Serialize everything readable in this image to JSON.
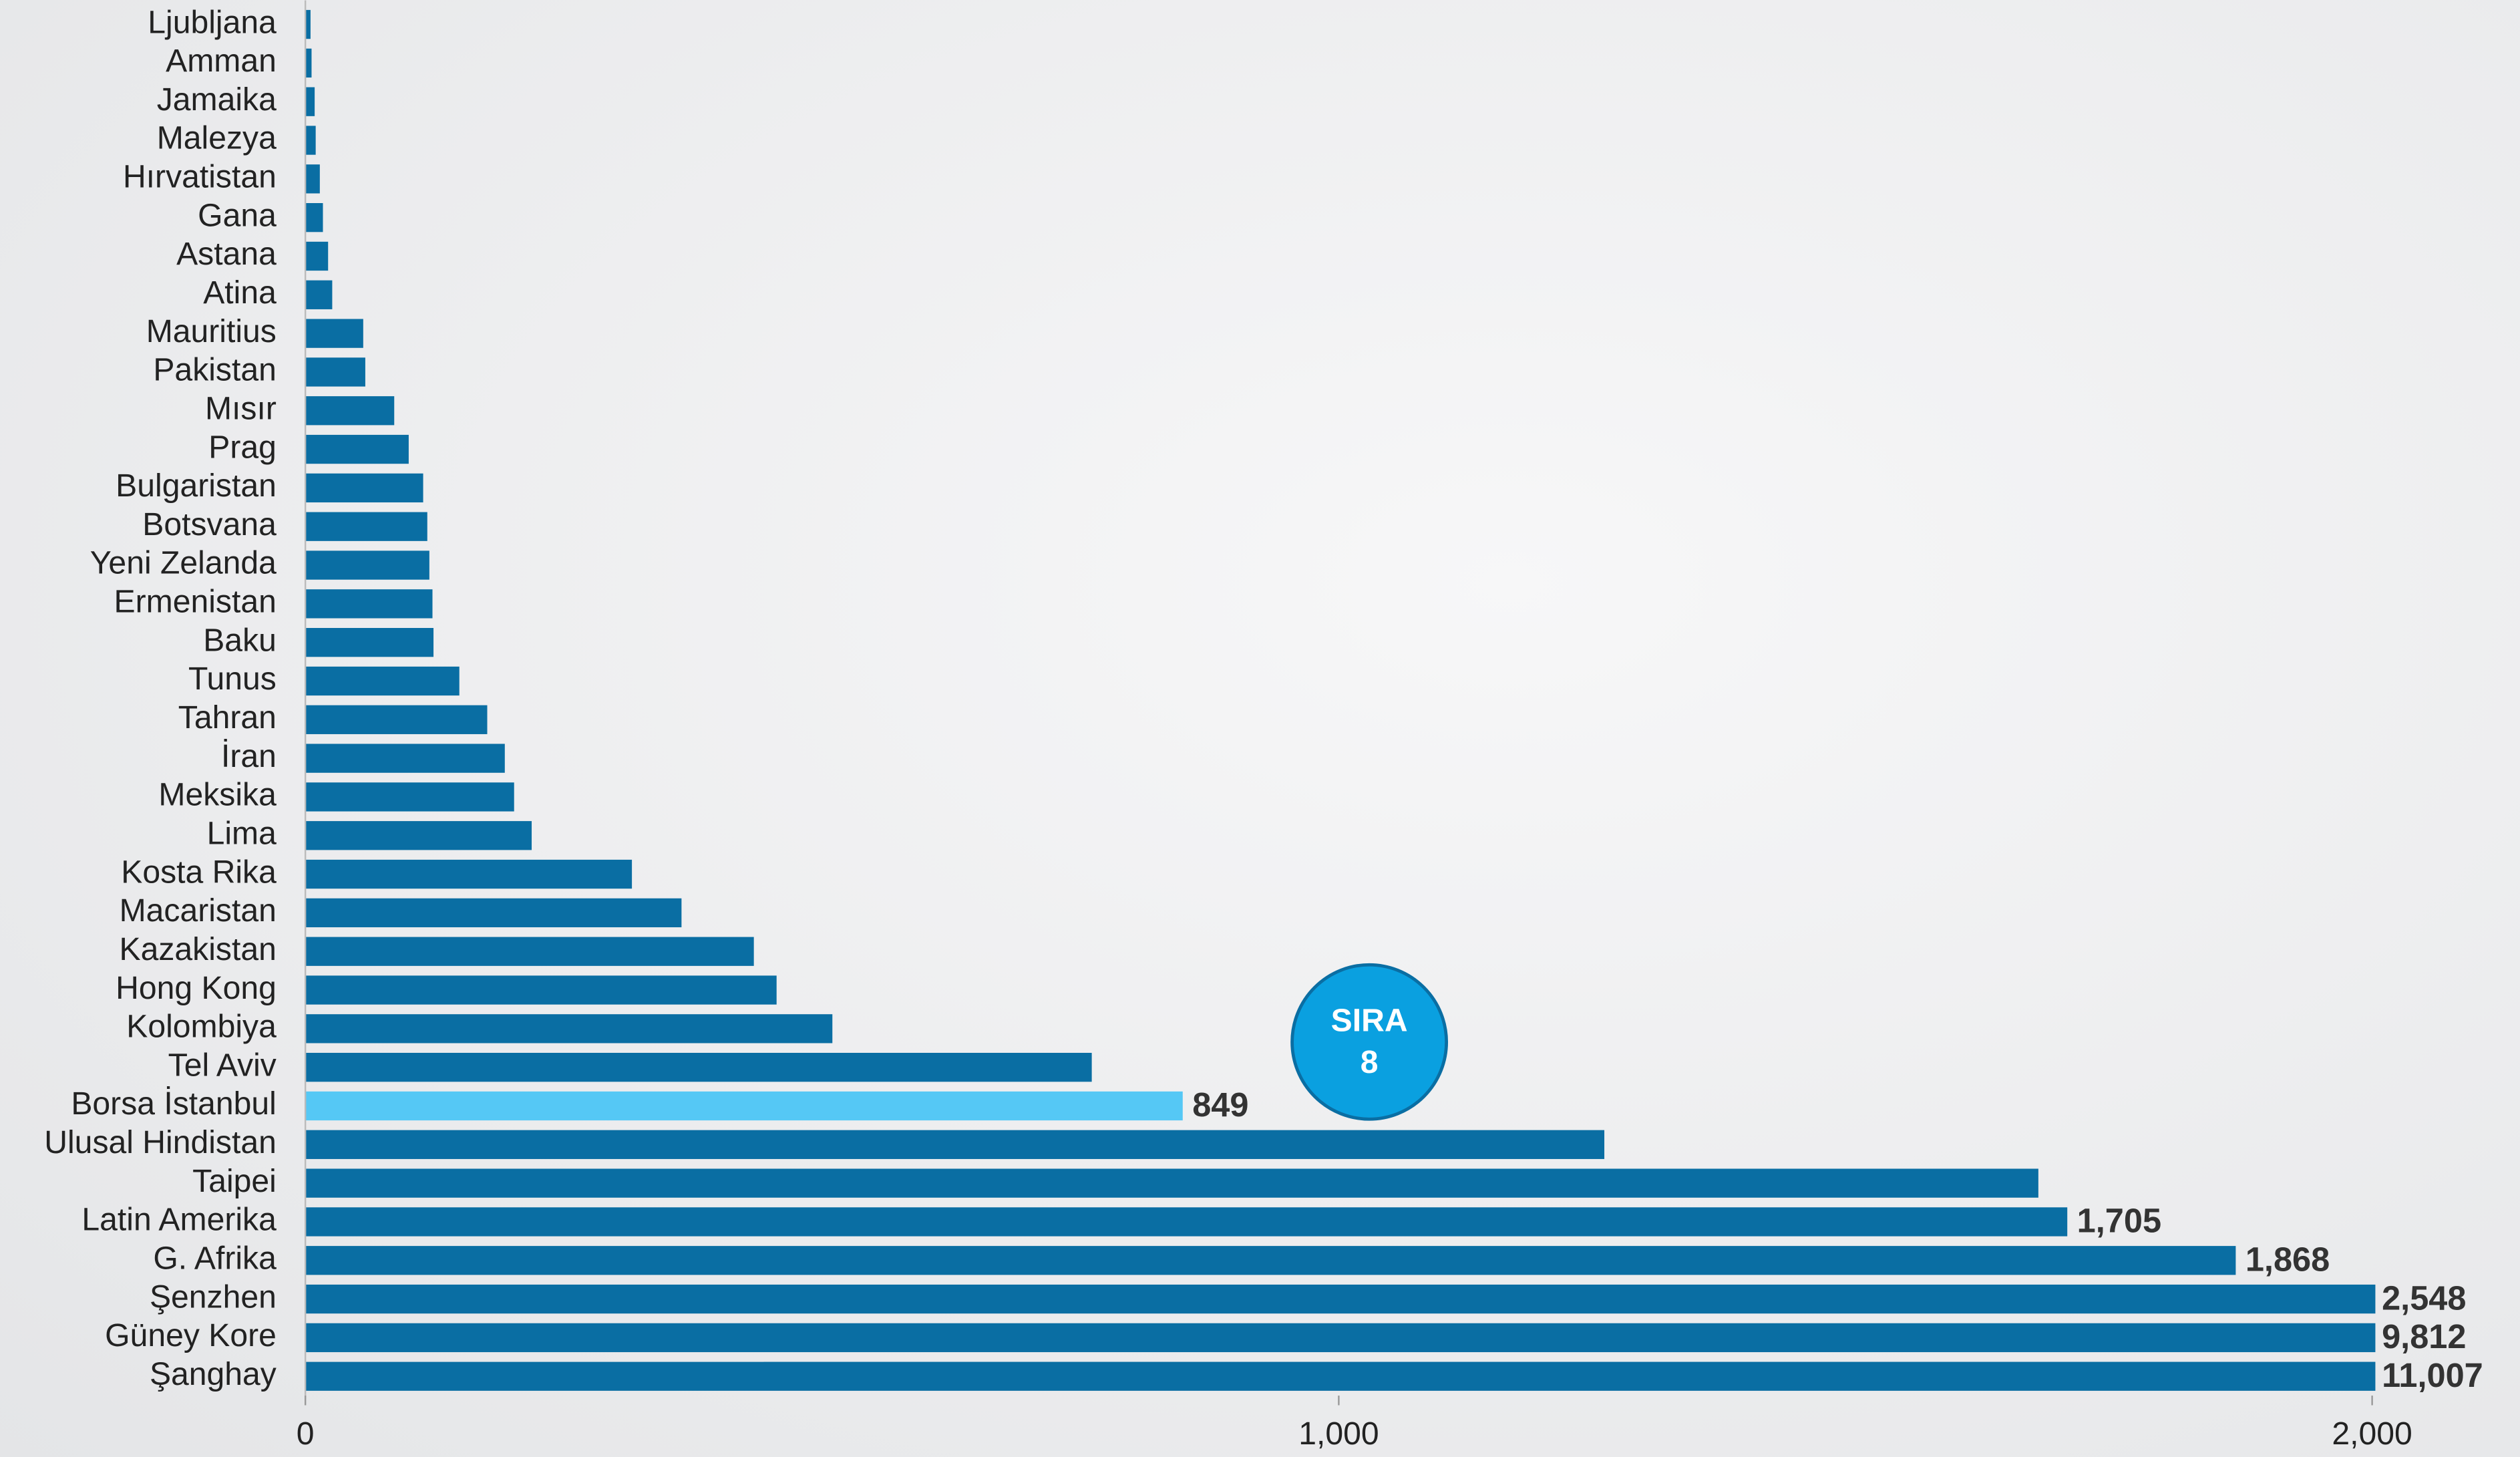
{
  "chart_data": {
    "type": "hbar",
    "categories": [
      "Ljubljana",
      "Amman",
      "Jamaika",
      "Malezya",
      "Hırvatistan",
      "Gana",
      "Astana",
      "Atina",
      "Mauritius",
      "Pakistan",
      "Mısır",
      "Prag",
      "Bulgaristan",
      "Botsvana",
      "Yeni Zelanda",
      "Ermenistan",
      "Baku",
      "Tunus",
      "Tahran",
      "İran",
      "Meksika",
      "Lima",
      "Kosta Rika",
      "Macaristan",
      "Kazakistan",
      "Hong Kong",
      "Kolombiya",
      "Tel Aviv",
      "Borsa İstanbul",
      "Ulusal Hindistan",
      "Taipei",
      "Latin Amerika",
      "G. Afrika",
      "Şenzhen",
      "Güney Kore",
      "Şanghay"
    ],
    "values": [
      5,
      6,
      9,
      10,
      14,
      17,
      22,
      26,
      56,
      58,
      86,
      100,
      114,
      118,
      120,
      123,
      124,
      149,
      176,
      193,
      202,
      219,
      316,
      364,
      434,
      456,
      510,
      761,
      849,
      1257,
      1677,
      1705,
      1868,
      2548,
      9812,
      11007
    ],
    "value_labels": [
      null,
      null,
      null,
      null,
      null,
      null,
      null,
      null,
      null,
      null,
      null,
      null,
      null,
      null,
      null,
      null,
      null,
      null,
      null,
      null,
      null,
      null,
      null,
      null,
      null,
      null,
      null,
      null,
      "849",
      null,
      null,
      "1,705",
      "1,868",
      "2,548",
      "9,812",
      "11,007"
    ],
    "colors": [
      "#0a6ea3",
      "#0a6ea3",
      "#0a6ea3",
      "#0a6ea3",
      "#0a6ea3",
      "#0a6ea3",
      "#0a6ea3",
      "#0a6ea3",
      "#0a6ea3",
      "#0a6ea3",
      "#0a6ea3",
      "#0a6ea3",
      "#0a6ea3",
      "#0a6ea3",
      "#0a6ea3",
      "#0a6ea3",
      "#0a6ea3",
      "#0a6ea3",
      "#0a6ea3",
      "#0a6ea3",
      "#0a6ea3",
      "#0a6ea3",
      "#0a6ea3",
      "#0a6ea3",
      "#0a6ea3",
      "#0a6ea3",
      "#0a6ea3",
      "#0a6ea3",
      "#55c8f5",
      "#0a6ea3",
      "#0a6ea3",
      "#0a6ea3",
      "#0a6ea3",
      "#0a6ea3",
      "#0a6ea3",
      "#0a6ea3"
    ],
    "xlim": [
      0,
      2000
    ],
    "xticks": [
      0,
      {
        "value": 1000,
        "label": "1,000"
      },
      {
        "value": 2000,
        "label": "2,000"
      }
    ],
    "annotation": {
      "lines": [
        "SIRA",
        "8"
      ],
      "color": "#0aa0e0"
    }
  }
}
